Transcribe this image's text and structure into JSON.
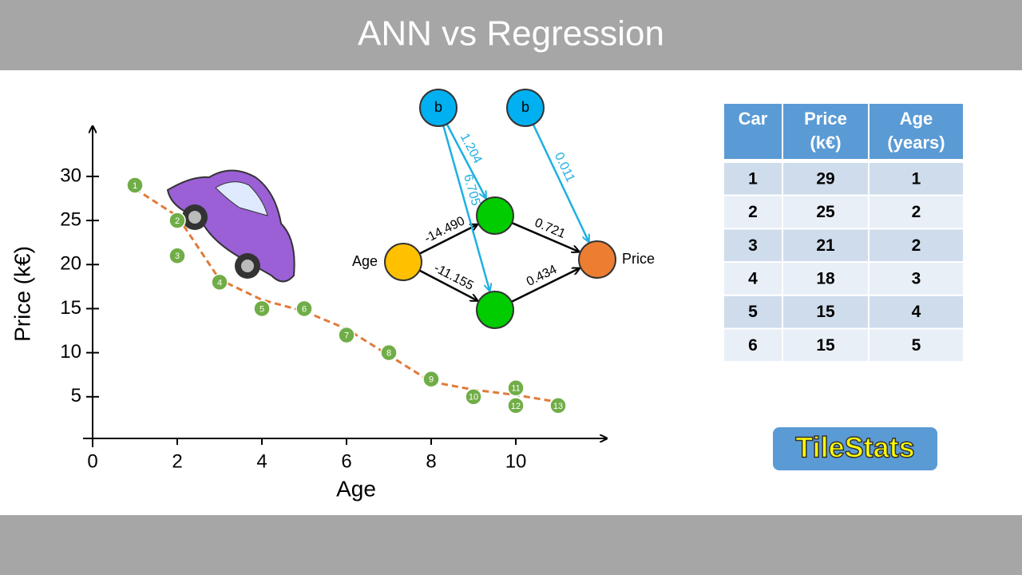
{
  "header": {
    "title": "ANN vs Regression"
  },
  "chart_data": {
    "type": "scatter",
    "x": [
      1,
      2,
      2,
      3,
      4,
      5,
      6,
      7,
      8,
      9,
      10,
      10,
      11
    ],
    "values": [
      29,
      25,
      21,
      18,
      15,
      15,
      12,
      10,
      7,
      5,
      6,
      4,
      4
    ],
    "point_labels": [
      "1",
      "2",
      "3",
      "4",
      "5",
      "6",
      "7",
      "8",
      "9",
      "10",
      "11",
      "12",
      "13"
    ],
    "color": "#70ad47",
    "curve": {
      "x": [
        1,
        2,
        3,
        4,
        5,
        6,
        7,
        8,
        9,
        10,
        11
      ],
      "values": [
        28.6,
        25.5,
        18.3,
        16.0,
        14.7,
        12.7,
        9.7,
        6.7,
        5.8,
        5.2,
        4.4
      ],
      "color": "#e07b39"
    },
    "xlabel": "Age",
    "ylabel": "Price (k€)",
    "xlim": [
      0,
      12.15
    ],
    "ylim": [
      0,
      35.7
    ],
    "xticks": [
      0,
      2,
      4,
      6,
      8,
      10
    ],
    "yticks": [
      5,
      10,
      15,
      20,
      25,
      30
    ]
  },
  "diagram": {
    "nodes": [
      {
        "label": "b"
      },
      {
        "label": "b"
      },
      {
        "label": "Age"
      },
      {},
      {},
      {
        "label": "Price"
      }
    ],
    "edges": [
      {
        "weight": "-14.490"
      },
      {
        "weight": "-11.155"
      },
      {
        "weight": "0.721"
      },
      {
        "weight": "0.434"
      },
      {
        "weight": "1.204"
      },
      {
        "weight": "6.705"
      },
      {
        "weight": "0.011"
      }
    ]
  },
  "table": {
    "header": [
      "Car",
      "Price (k€)",
      "Age (years)"
    ],
    "rows": [
      [
        1,
        29,
        1
      ],
      [
        2,
        25,
        2
      ],
      [
        3,
        21,
        2
      ],
      [
        4,
        18,
        3
      ],
      [
        5,
        15,
        4
      ],
      [
        6,
        15,
        5
      ]
    ]
  },
  "logo": {
    "text": "TileStats"
  }
}
